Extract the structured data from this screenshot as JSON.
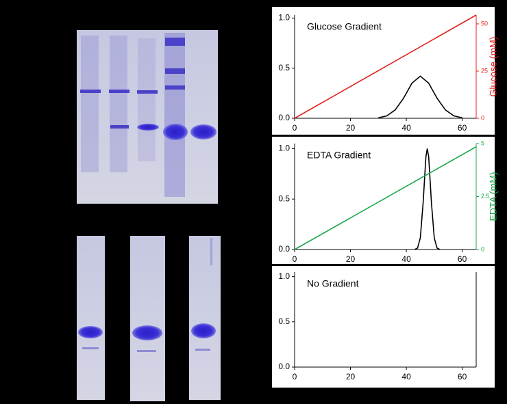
{
  "chart_data": [
    {
      "type": "line",
      "title": "Glucose Gradient",
      "xlim": [
        0,
        65
      ],
      "xticks": [
        0,
        20,
        40,
        60
      ],
      "ylim": [
        0,
        1.03
      ],
      "yticks": [
        {
          "value": 0,
          "label": "0.0"
        },
        {
          "value": 0.5,
          "label": "0.5"
        },
        {
          "value": 1,
          "label": "1.0"
        }
      ],
      "y2label": "Glucose (mM)",
      "y2lim": [
        0,
        54.7
      ],
      "y2ticks": [
        0,
        25,
        50
      ],
      "series": [
        {
          "color": "#000000",
          "x": [
            30,
            33,
            36,
            39,
            42,
            45,
            48,
            51,
            54,
            57,
            60
          ],
          "values": [
            0.005,
            0.024,
            0.083,
            0.2,
            0.35,
            0.42,
            0.35,
            0.2,
            0.083,
            0.024,
            0.005
          ]
        },
        {
          "color": "#e0201c",
          "axis": "y2",
          "x": [
            0,
            65
          ],
          "values": [
            0,
            54.7
          ]
        }
      ]
    },
    {
      "type": "line",
      "title": "EDTA Gradient",
      "xlim": [
        0,
        65
      ],
      "xticks": [
        0,
        20,
        40,
        60
      ],
      "ylim": [
        0,
        1.05
      ],
      "yticks": [
        {
          "value": 0,
          "label": "0.0"
        },
        {
          "value": 0.5,
          "label": "0.5"
        },
        {
          "value": 1,
          "label": "1.0"
        }
      ],
      "y2label": "EDTA (mM)",
      "y2lim": [
        0,
        5
      ],
      "y2ticks": [
        0,
        2.5,
        5
      ],
      "series": [
        {
          "color": "#000000",
          "x": [
            43,
            44,
            45,
            46,
            47,
            47.5,
            48,
            49,
            50,
            51,
            52
          ],
          "values": [
            0.001,
            0.014,
            0.114,
            0.458,
            0.917,
            1,
            0.917,
            0.458,
            0.114,
            0.014,
            0.001
          ]
        },
        {
          "color": "#1aa84a",
          "axis": "y2",
          "x": [
            0,
            65
          ],
          "values": [
            0,
            4.85
          ]
        }
      ]
    },
    {
      "type": "line",
      "title": "No Gradient",
      "xlim": [
        0,
        65
      ],
      "xticks": [
        0,
        20,
        40,
        60
      ],
      "ylim": [
        0,
        1.05
      ],
      "yticks": [
        {
          "value": 0,
          "label": "0.0"
        },
        {
          "value": 0.5,
          "label": "0.5"
        },
        {
          "value": 1,
          "label": "1.0"
        }
      ],
      "series": []
    }
  ]
}
